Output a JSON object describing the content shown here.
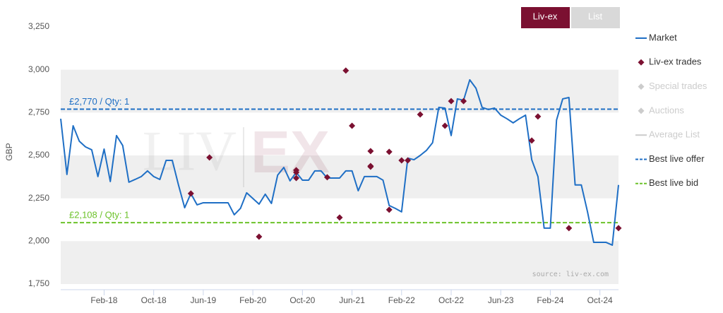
{
  "chart_data": {
    "type": "line",
    "buttons": [
      "Liv-ex",
      "List"
    ],
    "y_label": "GBP",
    "source": "source: liv-ex.com",
    "watermark": [
      "LIV",
      "EX"
    ],
    "ylim": [
      1750,
      3250
    ],
    "yticks": [
      {
        "value": 1750,
        "label": "1,750"
      },
      {
        "value": 2000,
        "label": "2,000"
      },
      {
        "value": 2250,
        "label": "2,250"
      },
      {
        "value": 2500,
        "label": "2,500"
      },
      {
        "value": 2750,
        "label": "2,750"
      },
      {
        "value": 3000,
        "label": "3,000"
      },
      {
        "value": 3250,
        "label": "3,250"
      }
    ],
    "xlim": [
      "2017-07",
      "2025-01"
    ],
    "xticks": [
      {
        "value": "2018-02",
        "label": "Feb-18"
      },
      {
        "value": "2018-10",
        "label": "Oct-18"
      },
      {
        "value": "2019-06",
        "label": "Jun-19"
      },
      {
        "value": "2020-02",
        "label": "Feb-20"
      },
      {
        "value": "2020-10",
        "label": "Oct-20"
      },
      {
        "value": "2021-06",
        "label": "Jun-21"
      },
      {
        "value": "2022-02",
        "label": "Feb-22"
      },
      {
        "value": "2022-10",
        "label": "Oct-22"
      },
      {
        "value": "2023-06",
        "label": "Jun-23"
      },
      {
        "value": "2024-02",
        "label": "Feb-24"
      },
      {
        "value": "2024-10",
        "label": "Oct-24"
      }
    ],
    "series": [
      {
        "name": "Market",
        "type": "line",
        "color": "#1f6fc5",
        "active": true,
        "x": [
          "2017-07",
          "2017-08",
          "2017-09",
          "2017-10",
          "2017-11",
          "2017-12",
          "2018-01",
          "2018-02",
          "2018-03",
          "2018-04",
          "2018-05",
          "2018-06",
          "2018-07",
          "2018-08",
          "2018-09",
          "2018-10",
          "2018-11",
          "2018-12",
          "2019-01",
          "2019-02",
          "2019-03",
          "2019-04",
          "2019-05",
          "2019-06",
          "2019-07",
          "2019-08",
          "2019-09",
          "2019-10",
          "2019-11",
          "2019-12",
          "2020-01",
          "2020-02",
          "2020-03",
          "2020-04",
          "2020-05",
          "2020-06",
          "2020-07",
          "2020-08",
          "2020-09",
          "2020-10",
          "2020-11",
          "2020-12",
          "2021-01",
          "2021-02",
          "2021-03",
          "2021-04",
          "2021-05",
          "2021-06",
          "2021-07",
          "2021-08",
          "2021-09",
          "2021-10",
          "2021-11",
          "2021-12",
          "2022-01",
          "2022-02",
          "2022-03",
          "2022-04",
          "2022-05",
          "2022-06",
          "2022-07",
          "2022-08",
          "2022-09",
          "2022-10",
          "2022-11",
          "2022-12",
          "2023-01",
          "2023-02",
          "2023-03",
          "2023-04",
          "2023-05",
          "2023-06",
          "2023-07",
          "2023-08",
          "2023-09",
          "2023-10",
          "2023-11",
          "2023-12",
          "2024-01",
          "2024-02",
          "2024-03",
          "2024-04",
          "2024-05",
          "2024-06",
          "2024-07",
          "2024-08",
          "2024-09",
          "2024-10",
          "2024-11",
          "2024-12",
          "2025-01"
        ],
        "values": [
          2714,
          2389,
          2673,
          2583,
          2550,
          2533,
          2377,
          2537,
          2348,
          2616,
          2558,
          2344,
          2360,
          2377,
          2410,
          2377,
          2360,
          2471,
          2471,
          2328,
          2195,
          2278,
          2212,
          2224,
          2224,
          2224,
          2224,
          2224,
          2154,
          2191,
          2282,
          2249,
          2216,
          2274,
          2220,
          2385,
          2430,
          2352,
          2401,
          2356,
          2356,
          2410,
          2410,
          2368,
          2368,
          2368,
          2410,
          2410,
          2294,
          2377,
          2377,
          2377,
          2356,
          2208,
          2191,
          2171,
          2484,
          2475,
          2500,
          2529,
          2574,
          2780,
          2776,
          2616,
          2830,
          2822,
          2941,
          2892,
          2780,
          2768,
          2776,
          2735,
          2714,
          2690,
          2714,
          2735,
          2475,
          2377,
          2076,
          2076,
          2706,
          2830,
          2838,
          2328,
          2328,
          2171,
          1993,
          1993,
          1993,
          1977,
          2328
        ]
      },
      {
        "name": "Liv-ex trades",
        "type": "scatter",
        "color": "#7b1031",
        "active": true,
        "x": [
          "2019-04",
          "2019-07",
          "2020-03",
          "2020-09",
          "2020-09",
          "2020-09",
          "2021-02",
          "2021-04",
          "2021-05",
          "2021-06",
          "2021-09",
          "2021-09",
          "2021-09",
          "2021-12",
          "2021-12",
          "2022-02",
          "2022-03",
          "2022-05",
          "2022-09",
          "2022-10",
          "2022-12",
          "2023-11",
          "2023-12",
          "2024-05",
          "2025-01"
        ],
        "values": [
          2278,
          2488,
          2026,
          2414,
          2401,
          2368,
          2373,
          2138,
          2995,
          2673,
          2438,
          2525,
          2434,
          2183,
          2521,
          2471,
          2471,
          2739,
          2673,
          2817,
          2817,
          2587,
          2727,
          2076,
          2076
        ]
      },
      {
        "name": "Special trades",
        "type": "scatter",
        "color": "#cccccc",
        "active": false,
        "x": [],
        "values": []
      },
      {
        "name": "Auctions",
        "type": "scatter",
        "color": "#cccccc",
        "active": false,
        "x": [],
        "values": []
      },
      {
        "name": "Average List",
        "type": "line",
        "color": "#cccccc",
        "active": false,
        "x": [],
        "values": []
      }
    ],
    "reference_lines": [
      {
        "name": "Best live offer",
        "value": 2770,
        "label": "£2,770 / Qty: 1",
        "color": "#1f6fc5"
      },
      {
        "name": "Best live bid",
        "value": 2108,
        "label": "£2,108 / Qty: 1",
        "color": "#6cc22a"
      }
    ]
  }
}
